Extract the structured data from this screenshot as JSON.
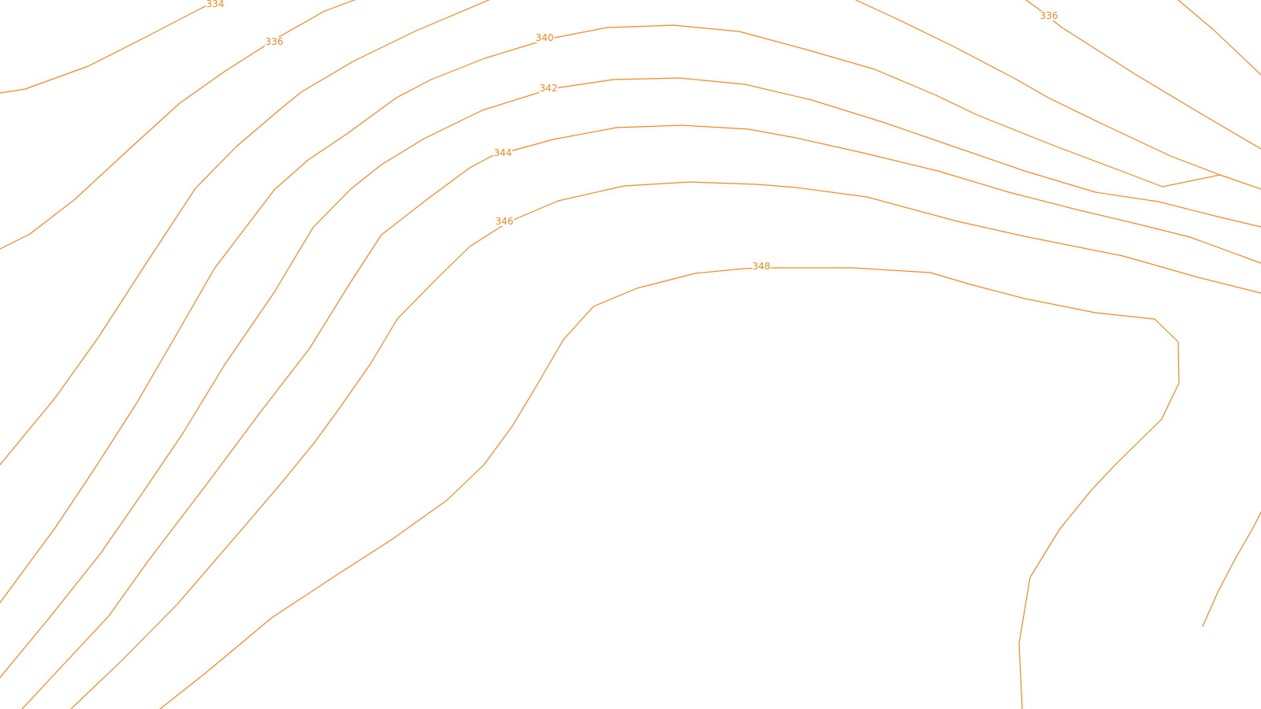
{
  "map": {
    "line_color": "#f5871f",
    "background_color": "#ffffff",
    "contour_labels": [
      {
        "id": "label-334",
        "text": "334"
      },
      {
        "id": "label-336-left",
        "text": "336"
      },
      {
        "id": "label-336-right",
        "text": "336"
      },
      {
        "id": "label-340",
        "text": "340"
      },
      {
        "id": "label-342",
        "text": "342"
      },
      {
        "id": "label-344",
        "text": "344"
      },
      {
        "id": "label-346",
        "text": "346"
      },
      {
        "id": "label-348",
        "text": "348"
      }
    ]
  }
}
